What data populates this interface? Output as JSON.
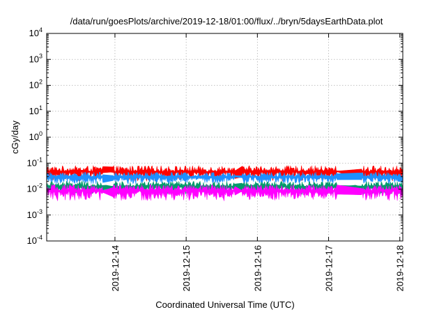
{
  "chart_data": {
    "type": "line",
    "title": "/data/run/goesPlots/archive/2019-12-18/01:00/flux/../bryn/5daysEarthData.plot",
    "xlabel": "Coordinated Universal Time (UTC)",
    "ylabel": "cGy/day",
    "yscale": "log",
    "ylim": [
      0.0001,
      10000
    ],
    "yticks": [
      {
        "base": "10",
        "exp": "-4",
        "value": 0.0001
      },
      {
        "base": "10",
        "exp": "-3",
        "value": 0.001
      },
      {
        "base": "10",
        "exp": "-2",
        "value": 0.01
      },
      {
        "base": "10",
        "exp": "-1",
        "value": 0.1
      },
      {
        "base": "10",
        "exp": "0",
        "value": 1
      },
      {
        "base": "10",
        "exp": "1",
        "value": 10
      },
      {
        "base": "10",
        "exp": "2",
        "value": 100
      },
      {
        "base": "10",
        "exp": "3",
        "value": 1000
      },
      {
        "base": "10",
        "exp": "4",
        "value": 10000
      }
    ],
    "xlim": [
      "2019-12-13T01:00",
      "2019-12-18T01:00"
    ],
    "xticks": [
      "2019-12-14",
      "2019-12-15",
      "2019-12-16",
      "2019-12-17",
      "2019-12-18"
    ],
    "grid": true,
    "gaps": [
      [
        "2019-12-13T20:00",
        "2019-12-13T23:20"
      ],
      [
        "2019-12-15T16:30",
        "2019-12-15T18:40"
      ],
      [
        "2019-12-17T03:00",
        "2019-12-17T11:00"
      ]
    ],
    "series": [
      {
        "color": "#ff0000",
        "low": 0.02,
        "high": 0.08
      },
      {
        "color": "#1e90ff",
        "low": 0.015,
        "high": 0.045
      },
      {
        "color": "#009b6b",
        "low": 0.006,
        "high": 0.02
      },
      {
        "color": "#ff00ff",
        "low": 0.0035,
        "high": 0.015
      }
    ]
  }
}
